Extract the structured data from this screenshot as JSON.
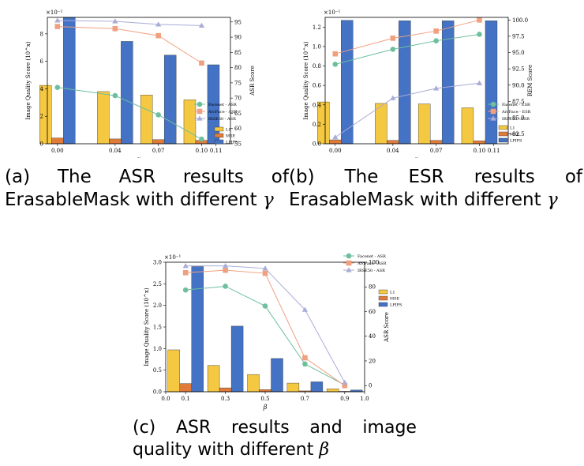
{
  "captions": {
    "a": {
      "line1": [
        "(a)",
        "The",
        "ASR",
        "results",
        "of"
      ],
      "line2": "ErasableMask with different",
      "symbol": "γ"
    },
    "b": {
      "line1": [
        "(b)",
        "The",
        "ESR",
        "results",
        "of"
      ],
      "line2": "ErasableMask with different",
      "symbol": "γ"
    },
    "c": {
      "line1": [
        "(c)",
        "ASR",
        "results",
        "and",
        "image"
      ],
      "line2": "quality with different",
      "symbol": "β"
    }
  },
  "chart_data": [
    {
      "type": "bar+line",
      "id": "a",
      "xlabel": "γ",
      "ylabel_left": "Image Quality Score (10^x)",
      "ylabel_right": "ASR Score",
      "scale_label": "×10⁻²",
      "x_ticks": [
        "0.00",
        "0.04",
        "0.07",
        "0.10",
        "0.11"
      ],
      "x_tick_pos": [
        0,
        0.04,
        0.07,
        0.1,
        0.11
      ],
      "xlim": [
        -0.007,
        0.12
      ],
      "left_ylim": [
        0,
        9.2
      ],
      "left_ticks": [
        0,
        2,
        4,
        6,
        8
      ],
      "right_ylim": [
        55,
        96.5
      ],
      "right_ticks": [
        55,
        60,
        65,
        70,
        75,
        80,
        85,
        90,
        95
      ],
      "bar_x": [
        0,
        0.04,
        0.07,
        0.1
      ],
      "bars": [
        {
          "name": "L1",
          "color": "#f5c842",
          "values": [
            4.25,
            3.8,
            3.55,
            3.2
          ]
        },
        {
          "name": "MSE",
          "color": "#e07b39",
          "values": [
            0.42,
            0.35,
            0.3,
            0.25
          ]
        },
        {
          "name": "LPIPS",
          "color": "#4472c4",
          "values": [
            9.2,
            7.45,
            6.45,
            5.75
          ]
        }
      ],
      "lines": [
        {
          "name": "Facenet - ASR",
          "color": "#6dbf9e",
          "marker": "circle",
          "x": [
            0,
            0.04,
            0.07,
            0.1
          ],
          "values": [
            73.5,
            70.8,
            64.5,
            56.5
          ]
        },
        {
          "name": "ArcFace - ASR",
          "color": "#f0a07e",
          "marker": "square",
          "x": [
            0,
            0.04,
            0.07,
            0.1
          ],
          "values": [
            93.5,
            92.8,
            90.5,
            81.5
          ]
        },
        {
          "name": "IRSE50 - ASR",
          "color": "#a9acd6",
          "marker": "triangle",
          "x": [
            0,
            0.04,
            0.07,
            0.1
          ],
          "values": [
            95.5,
            95.2,
            94.2,
            93.8
          ]
        }
      ]
    },
    {
      "type": "bar+line",
      "id": "b",
      "xlabel": "γ",
      "ylabel_left": "Image Quality Score (10^x)",
      "ylabel_right": "REM Score",
      "scale_label": "×10⁻¹",
      "x_ticks": [
        "0.00",
        "0.04",
        "0.07",
        "0.10",
        "0.11"
      ],
      "x_tick_pos": [
        0,
        0.04,
        0.07,
        0.1,
        0.11
      ],
      "xlim": [
        -0.007,
        0.12
      ],
      "left_ylim": [
        0,
        1.3
      ],
      "left_ticks": [
        "0.0",
        "0.2",
        "0.4",
        "0.6",
        "0.8",
        "1.0",
        "1.2"
      ],
      "right_ylim": [
        81.0,
        100.4
      ],
      "right_ticks": [
        "82.5",
        "85.0",
        "87.5",
        "90.0",
        "92.5",
        "95.0",
        "97.5",
        "100.0"
      ],
      "bar_x": [
        0,
        0.04,
        0.07,
        0.1
      ],
      "bars": [
        {
          "name": "L1",
          "color": "#f5c842",
          "values": [
            0.43,
            0.415,
            0.41,
            0.37
          ]
        },
        {
          "name": "MSE",
          "color": "#e07b39",
          "values": [
            0.04,
            0.035,
            0.035,
            0.03
          ]
        },
        {
          "name": "LPIPS",
          "color": "#4472c4",
          "values": [
            1.27,
            1.265,
            1.265,
            1.265
          ]
        }
      ],
      "lines": [
        {
          "name": "Facenet - ESR",
          "color": "#6dbf9e",
          "marker": "circle",
          "x": [
            0,
            0.04,
            0.07,
            0.1
          ],
          "values": [
            93.2,
            95.5,
            96.8,
            97.8
          ]
        },
        {
          "name": "ArcFace - ESR",
          "color": "#f0a07e",
          "marker": "square",
          "x": [
            0,
            0.04,
            0.07,
            0.1
          ],
          "values": [
            94.8,
            97.2,
            98.3,
            100.0
          ]
        },
        {
          "name": "IRSE50 - ESR",
          "color": "#a9acd6",
          "marker": "triangle",
          "x": [
            0,
            0.04,
            0.07,
            0.1
          ],
          "values": [
            82.0,
            88.0,
            89.5,
            90.3
          ]
        }
      ]
    },
    {
      "type": "bar+line",
      "id": "c",
      "xlabel": "β",
      "ylabel_left": "Image Quality Score (10^x)",
      "ylabel_right": "ASR Score",
      "scale_label": "×10⁻¹",
      "x_ticks": [
        "0.0",
        "0.1",
        "0.3",
        "0.5",
        "0.7",
        "0.9",
        "1.0"
      ],
      "x_tick_pos": [
        0.0,
        0.1,
        0.3,
        0.5,
        0.7,
        0.9,
        1.0
      ],
      "xlim": [
        0.0,
        1.0
      ],
      "left_ylim": [
        0,
        3.0
      ],
      "left_ticks": [
        "0.0",
        "0.5",
        "1.0",
        "1.5",
        "2.0",
        "2.5",
        "3.0"
      ],
      "right_ylim": [
        -5,
        100
      ],
      "right_ticks": [
        0,
        20,
        40,
        60,
        80,
        100
      ],
      "bar_x": [
        0.1,
        0.3,
        0.5,
        0.7,
        0.9
      ],
      "bars": [
        {
          "name": "L1",
          "color": "#f5c842",
          "values": [
            0.97,
            0.61,
            0.4,
            0.2,
            0.07
          ]
        },
        {
          "name": "MSE",
          "color": "#e07b39",
          "values": [
            0.19,
            0.09,
            0.05,
            0.02,
            0.01
          ]
        },
        {
          "name": "LPIPS",
          "color": "#4472c4",
          "values": [
            2.9,
            1.52,
            0.77,
            0.23,
            0.04
          ]
        }
      ],
      "lines": [
        {
          "name": "Facenet - ASR",
          "color": "#6dbf9e",
          "marker": "circle",
          "x": [
            0.1,
            0.3,
            0.5,
            0.7,
            0.9
          ],
          "values": [
            77.5,
            80.5,
            64.5,
            17.5,
            0.5
          ]
        },
        {
          "name": "ArcFace - ASR",
          "color": "#f0a07e",
          "marker": "square",
          "x": [
            0.1,
            0.3,
            0.5,
            0.7,
            0.9
          ],
          "values": [
            91.5,
            93.5,
            91.0,
            22.5,
            0.0
          ]
        },
        {
          "name": "IRSE50 - ASR",
          "color": "#a9acd6",
          "marker": "triangle",
          "x": [
            0.1,
            0.3,
            0.5,
            0.7,
            0.9
          ],
          "values": [
            97.0,
            97.0,
            95.0,
            61.5,
            2.5
          ]
        }
      ]
    }
  ]
}
